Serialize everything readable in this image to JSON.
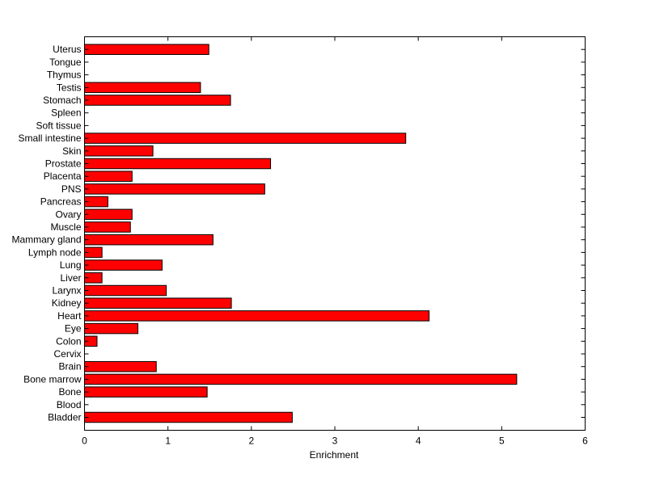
{
  "chart_data": {
    "type": "bar",
    "orientation": "horizontal",
    "title": "",
    "xlabel": "Enrichment",
    "ylabel": "",
    "xlim": [
      0,
      6
    ],
    "xticks": [
      "0",
      "1",
      "2",
      "3",
      "4",
      "5",
      "6"
    ],
    "grid": false,
    "bar_color": "#ff0000",
    "categories": [
      "Bladder",
      "Blood",
      "Bone",
      "Bone marrow",
      "Brain",
      "Cervix",
      "Colon",
      "Eye",
      "Heart",
      "Kidney",
      "Larynx",
      "Liver",
      "Lung",
      "Lymph node",
      "Mammary gland",
      "Muscle",
      "Ovary",
      "Pancreas",
      "PNS",
      "Placenta",
      "Prostate",
      "Skin",
      "Small intestine",
      "Soft tissue",
      "Spleen",
      "Stomach",
      "Testis",
      "Thymus",
      "Tongue",
      "Uterus"
    ],
    "values": [
      2.49,
      0,
      1.47,
      5.18,
      0.86,
      0,
      0.15,
      0.64,
      4.13,
      1.76,
      0.98,
      0.21,
      0.93,
      0.21,
      1.54,
      0.55,
      0.57,
      0.28,
      2.16,
      0.57,
      2.23,
      0.82,
      3.85,
      0,
      0,
      1.75,
      1.39,
      0,
      0,
      1.49
    ]
  }
}
